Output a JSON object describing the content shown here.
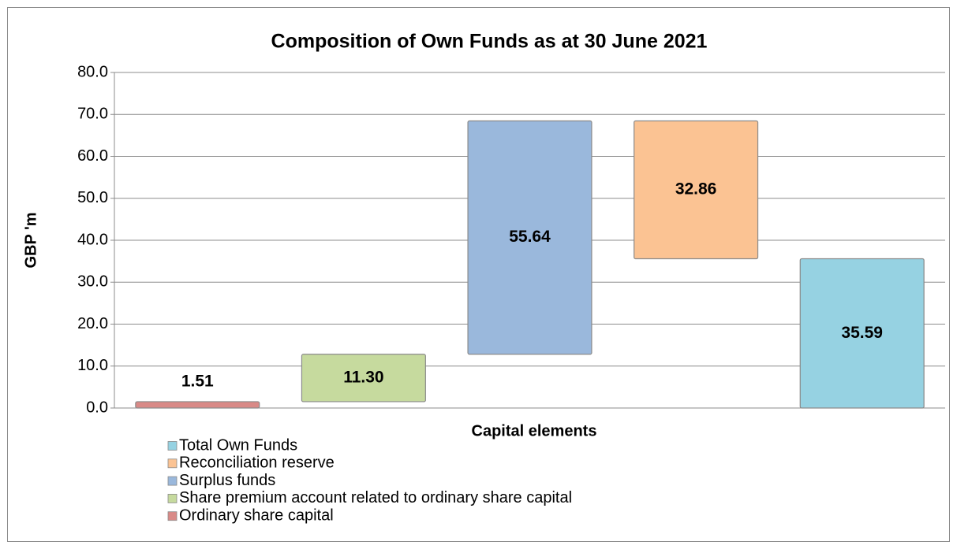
{
  "chart_data": {
    "type": "waterfall",
    "title": "Composition of Own Funds as at 30 June 2021",
    "y_label": "GBP 'm",
    "x_label": "Capital elements",
    "series": [
      {
        "name": "Ordinary share capital",
        "color": "#d98a87",
        "values": [
          1.51
        ]
      },
      {
        "name": "Share premium account related to ordinary share capital",
        "color": "#c6da9e",
        "values": [
          11.3
        ],
        "value_labels": [
          "11.30"
        ]
      },
      {
        "name": "Surplus funds",
        "color": "#9ab8dc",
        "values": [
          55.64
        ]
      },
      {
        "name": "Reconciliation reserve",
        "color": "#fbc393",
        "values": [
          -32.86
        ],
        "value_labels": [
          "32.86"
        ]
      },
      {
        "name": "Total Own Funds",
        "color": "#96d2e2",
        "values": [
          35.59
        ]
      }
    ],
    "ylim": [
      0,
      80
    ],
    "yticks": [
      {
        "value": 0,
        "label": "0.0"
      },
      {
        "value": 10,
        "label": "10.0"
      },
      {
        "value": 20,
        "label": "20.0"
      },
      {
        "value": 30,
        "label": "30.0"
      },
      {
        "value": 40,
        "label": "40.0"
      },
      {
        "value": 50,
        "label": "50.0"
      },
      {
        "value": 60,
        "label": "60.0"
      },
      {
        "value": 70,
        "label": "70.0"
      },
      {
        "value": 80,
        "label": "80.0"
      }
    ],
    "grid": true,
    "legend": "bottom-left"
  }
}
